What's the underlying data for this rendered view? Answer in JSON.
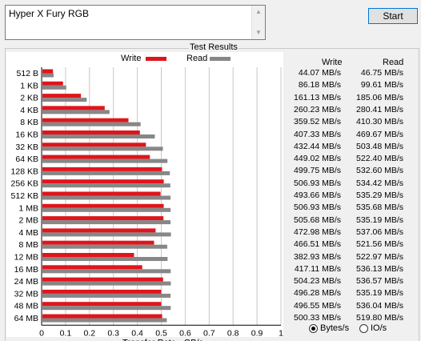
{
  "drive_name": "Hyper X Fury RGB",
  "start_label": "Start",
  "group_title": "Test Results",
  "legend": {
    "write": "Write",
    "read": "Read",
    "write_color": "#e0151b",
    "read_color": "#878787"
  },
  "columns": {
    "write": "Write",
    "read": "Read"
  },
  "options": {
    "bytes": "Bytes/s",
    "io": "IO/s",
    "selected": "bytes"
  },
  "chart_data": {
    "type": "bar",
    "orientation": "horizontal",
    "xlabel": "Transfer Rate - GB/s",
    "xlim": [
      0,
      1
    ],
    "xticks": [
      "0",
      "0.1",
      "0.2",
      "0.3",
      "0.4",
      "0.5",
      "0.6",
      "0.7",
      "0.8",
      "0.9",
      "1"
    ],
    "grid": true,
    "categories": [
      "512 B",
      "1 KB",
      "2 KB",
      "4 KB",
      "8 KB",
      "16 KB",
      "32 KB",
      "64 KB",
      "128 KB",
      "256 KB",
      "512 KB",
      "1 MB",
      "2 MB",
      "4 MB",
      "8 MB",
      "12 MB",
      "16 MB",
      "24 MB",
      "32 MB",
      "48 MB",
      "64 MB"
    ],
    "series": [
      {
        "name": "Write",
        "color": "#e0151b",
        "values": [
          0.04407,
          0.08618,
          0.16113,
          0.26023,
          0.35952,
          0.40733,
          0.43244,
          0.44902,
          0.49975,
          0.50693,
          0.49366,
          0.50693,
          0.50568,
          0.47298,
          0.46651,
          0.38293,
          0.41711,
          0.50423,
          0.49628,
          0.49655,
          0.50033
        ],
        "labels": [
          "44.07 MB/s",
          "86.18 MB/s",
          "161.13 MB/s",
          "260.23 MB/s",
          "359.52 MB/s",
          "407.33 MB/s",
          "432.44 MB/s",
          "449.02 MB/s",
          "499.75 MB/s",
          "506.93 MB/s",
          "493.66 MB/s",
          "506.93 MB/s",
          "505.68 MB/s",
          "472.98 MB/s",
          "466.51 MB/s",
          "382.93 MB/s",
          "417.11 MB/s",
          "504.23 MB/s",
          "496.28 MB/s",
          "496.55 MB/s",
          "500.33 MB/s"
        ]
      },
      {
        "name": "Read",
        "color": "#878787",
        "values": [
          0.04675,
          0.09961,
          0.18506,
          0.28041,
          0.4103,
          0.46967,
          0.50348,
          0.5224,
          0.5326,
          0.53442,
          0.53529,
          0.53568,
          0.53519,
          0.53706,
          0.52156,
          0.52297,
          0.53613,
          0.53657,
          0.53519,
          0.53604,
          0.5198
        ],
        "labels": [
          "46.75 MB/s",
          "99.61 MB/s",
          "185.06 MB/s",
          "280.41 MB/s",
          "410.30 MB/s",
          "469.67 MB/s",
          "503.48 MB/s",
          "522.40 MB/s",
          "532.60 MB/s",
          "534.42 MB/s",
          "535.29 MB/s",
          "535.68 MB/s",
          "535.19 MB/s",
          "537.06 MB/s",
          "521.56 MB/s",
          "522.97 MB/s",
          "536.13 MB/s",
          "536.57 MB/s",
          "535.19 MB/s",
          "536.04 MB/s",
          "519.80 MB/s"
        ]
      }
    ]
  }
}
